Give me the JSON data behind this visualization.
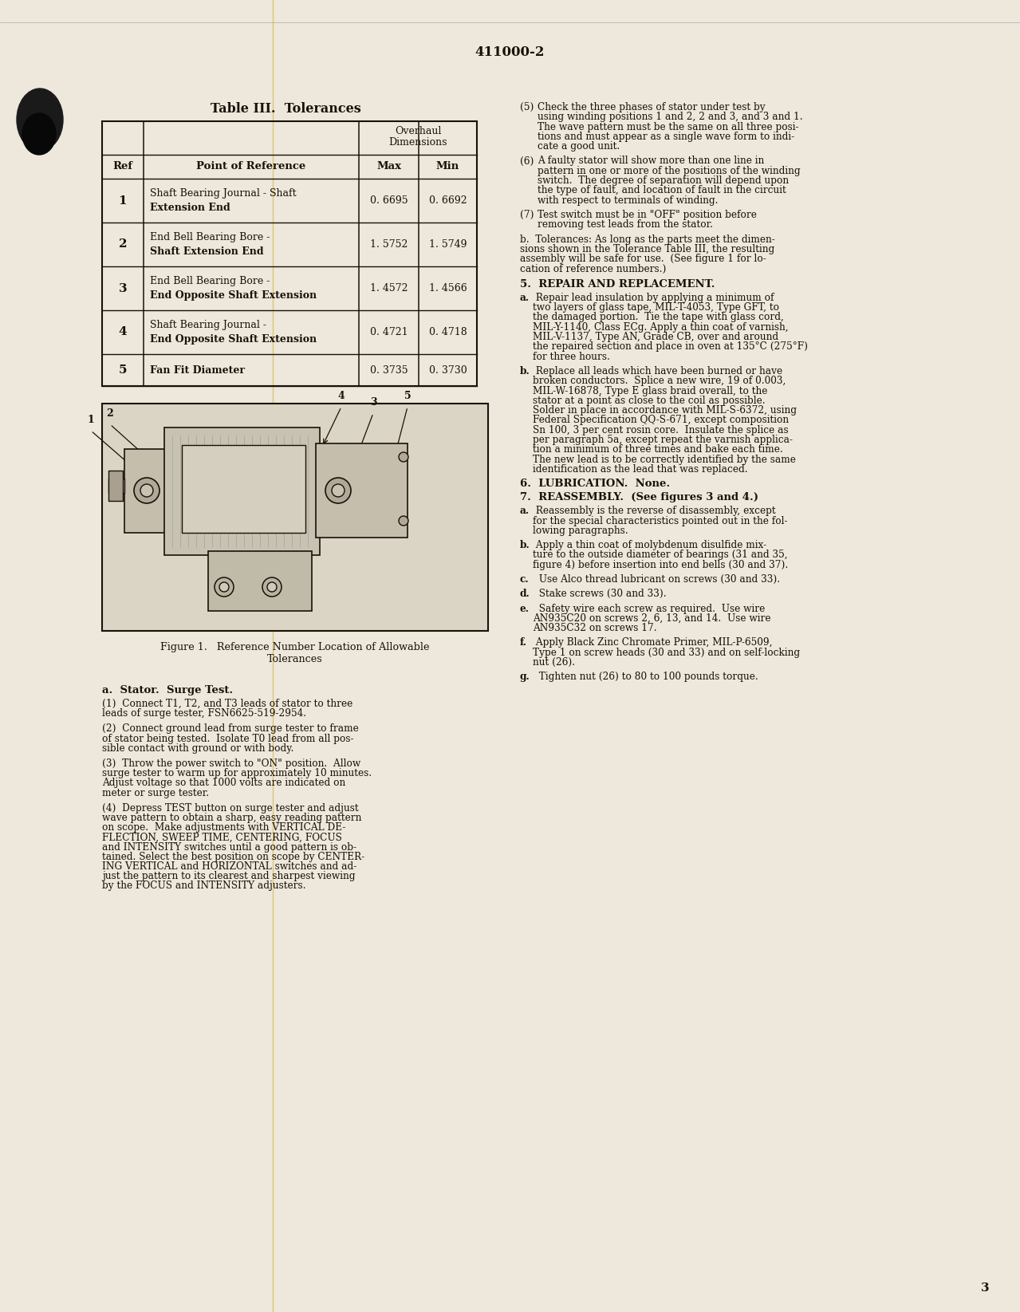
{
  "bg_color": "#e8e0d0",
  "page_color": "#ede8db",
  "text_color": "#1a1008",
  "doc_number": "411000-2",
  "page_number": "3",
  "table_title": "Table III.  Tolerances",
  "table_rows": [
    [
      "1",
      "Shaft Bearing Journal - Shaft\nExtension End",
      "0. 6695",
      "0. 6692"
    ],
    [
      "2",
      "End Bell Bearing Bore -\nShaft Extension End",
      "1. 5752",
      "1. 5749"
    ],
    [
      "3",
      "End Bell Bearing Bore -\nEnd Opposite Shaft Extension",
      "1. 4572",
      "1. 4566"
    ],
    [
      "4",
      "Shaft Bearing Journal -\nEnd Opposite Shaft Extension",
      "0. 4721",
      "0. 4718"
    ],
    [
      "5",
      "Fan Fit Diameter",
      "0. 3735",
      "0. 3730"
    ]
  ],
  "figure_caption": "Figure 1.   Reference Number Location of Allowable\nTolerances",
  "left_col_paragraphs": [
    "(1)  Connect T1, T2, and T3 leads of stator to three\nleads of surge tester, FSN6625-519-2954.",
    "(2)  Connect ground lead from surge tester to frame\nof stator being tested.  Isolate T0 lead from all pos-\nsible contact with ground or with body.",
    "(3)  Throw the power switch to \"ON\" position.  Allow\nsurge tester to warm up for approximately 10 minutes.\nAdjust voltage so that 1000 volts are indicated on\nmeter or surge tester.",
    "(4)  Depress TEST button on surge tester and adjust\nwave pattern to obtain a sharp, easy reading pattern\non scope.  Make adjustments with VERTICAL DE-\nFLECTION, SWEEP TIME, CENTERING, FOCUS\nand INTENSITY switches until a good pattern is ob-\ntained. Select the best position on scope by CENTER-\nING VERTICAL and HORIZONTAL switches and ad-\njust the pattern to its clearest and sharpest viewing\nby the FOCUS and INTENSITY adjusters."
  ],
  "right_col_blocks": [
    {
      "type": "para",
      "num": "(5)",
      "text": "Check the three phases of stator under test by\nusing winding positions 1 and 2, 2 and 3, and 3 and 1.\nThe wave pattern must be the same on all three posi-\ntions and must appear as a single wave form to indi-\ncate a good unit."
    },
    {
      "type": "para",
      "num": "(6)",
      "text": "A faulty stator will show more than one line in\npattern in one or more of the positions of the winding\nswitch.  The degree of separation will depend upon\nthe type of fault, and location of fault in the circuit\nwith respect to terminals of winding."
    },
    {
      "type": "para",
      "num": "(7)",
      "text": "Test switch must be in \"OFF\" position before\nremoving test leads from the stator."
    },
    {
      "type": "inline",
      "heading": "b.  Tolerances: ",
      "text": "As long as the parts meet the dimen-\nsions shown in the Tolerance Table III, the resulting\nassembly will be safe for use.  (See figure 1 for lo-\ncation of reference numbers.)"
    },
    {
      "type": "heading",
      "text": "5.  REPAIR AND REPLACEMENT."
    },
    {
      "type": "lettered",
      "letter": "a.",
      "text": " Repair lead insulation by applying a minimum of\ntwo layers of glass tape, MIL-T-4053, Type GFT, to\nthe damaged portion.  Tie the tape with glass cord,\nMIL-Y-1140, Class ECg. Apply a thin coat of varnish,\nMIL-V-1137, Type AN, Grade CB, over and around\nthe repaired section and place in oven at 135°C (275°F)\nfor three hours."
    },
    {
      "type": "lettered",
      "letter": "b.",
      "text": " Replace all leads which have been burned or have\nbroken conductors.  Splice a new wire, 19 of 0.003,\nMIL-W-16878, Type E glass braid overall, to the\nstator at a point as close to the coil as possible.\nSolder in place in accordance with MIL-S-6372, using\nFederal Specification QQ-S-671, except composition\nSn 100, 3 per cent rosin core.  Insulate the splice as\nper paragraph 5a, except repeat the varnish applica-\ntion a minimum of three times and bake each time.\nThe new lead is to be correctly identified by the same\nidentification as the lead that was replaced."
    },
    {
      "type": "heading",
      "text": "6.  LUBRICATION.  None."
    },
    {
      "type": "heading",
      "text": "7.  REASSEMBLY.  (See figures 3 and 4.)"
    },
    {
      "type": "lettered",
      "letter": "a.",
      "text": " Reassembly is the reverse of disassembly, except\nfor the special characteristics pointed out in the fol-\nlowing paragraphs."
    },
    {
      "type": "lettered",
      "letter": "b.",
      "text": " Apply a thin coat of molybdenum disulfide mix-\nture to the outside diameter of bearings (31 and 35,\nfigure 4) before insertion into end bells (30 and 37)."
    },
    {
      "type": "lettered",
      "letter": "c.",
      "text": "  Use Alco thread lubricant on screws (30 and 33)."
    },
    {
      "type": "lettered",
      "letter": "d.",
      "text": "  Stake screws (30 and 33)."
    },
    {
      "type": "lettered",
      "letter": "e.",
      "text": "  Safety wire each screw as required.  Use wire\nAN935C20 on screws 2, 6, 13, and 14.  Use wire\nAN935C32 on screws 17."
    },
    {
      "type": "lettered",
      "letter": "f.",
      "text": " Apply Black Zinc Chromate Primer, MIL-P-6509,\nType 1 on screw heads (30 and 33) and on self-locking\nnut (26)."
    },
    {
      "type": "lettered",
      "letter": "g.",
      "text": "  Tighten nut (26) to 80 to 100 pounds torque."
    }
  ]
}
